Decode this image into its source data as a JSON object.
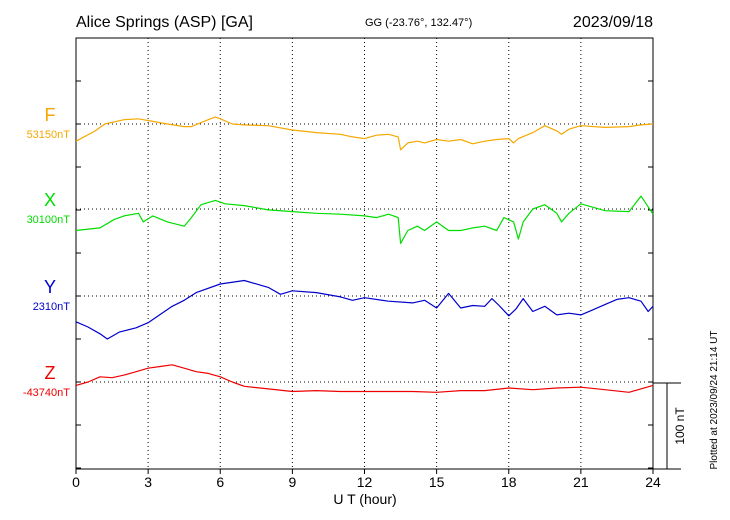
{
  "header": {
    "station": "Alice Springs (ASP)  [GA]",
    "coords": "GG (-23.76°, 132.47°)",
    "date": "2023/09/18"
  },
  "footer": {
    "plotted": "Plotted at 2023/09/24 21:14 UT"
  },
  "chart_data": {
    "type": "line",
    "xlabel": "U T (hour)",
    "xlim": [
      0,
      24
    ],
    "xticks": [
      "0",
      "3",
      "6",
      "9",
      "12",
      "15",
      "18",
      "21",
      "24"
    ],
    "grid": true,
    "scale_bar": "100 nT",
    "series": [
      {
        "name": "F",
        "baseline_label": "53150nT",
        "color": "#f5a800",
        "x": [
          0,
          0.8,
          1.2,
          2.0,
          2.6,
          2.8,
          3.2,
          3.8,
          4.5,
          4.8,
          5.5,
          5.8,
          6.0,
          6.5,
          7.0,
          8.0,
          9.0,
          10.0,
          11.0,
          11.5,
          12.0,
          12.5,
          13.0,
          13.4,
          13.5,
          13.8,
          14.2,
          14.5,
          15.0,
          15.5,
          16.0,
          16.5,
          17.0,
          17.5,
          18.0,
          18.2,
          18.4,
          19.0,
          19.5,
          20.0,
          20.2,
          20.5,
          21.0,
          22.0,
          23.0,
          23.5,
          24.0
        ],
        "values": [
          -20,
          -8,
          0,
          5,
          6,
          5,
          3,
          0,
          -3,
          -3,
          5,
          8,
          6,
          0,
          -1,
          -2,
          -7,
          -10,
          -12,
          -15,
          -17,
          -13,
          -12,
          -15,
          -30,
          -22,
          -20,
          -22,
          -18,
          -20,
          -18,
          -23,
          -20,
          -18,
          -17,
          -22,
          -17,
          -10,
          -2,
          -8,
          -12,
          -6,
          -2,
          -4,
          -3,
          -1,
          0
        ]
      },
      {
        "name": "X",
        "baseline_label": "30100nT",
        "color": "#00dd00",
        "x": [
          0,
          1.0,
          1.6,
          2.0,
          2.6,
          2.8,
          3.2,
          3.8,
          4.5,
          4.8,
          5.2,
          5.8,
          6.2,
          7.0,
          8.0,
          9.0,
          10.0,
          11.0,
          12.0,
          12.5,
          13.0,
          13.4,
          13.5,
          13.8,
          14.2,
          14.5,
          15.0,
          15.5,
          16.0,
          16.5,
          17.0,
          17.5,
          17.8,
          18.2,
          18.4,
          18.6,
          19.0,
          19.5,
          20.0,
          20.2,
          20.5,
          21.0,
          22.0,
          23.0,
          23.5,
          24.0
        ],
        "values": [
          -25,
          -22,
          -12,
          -8,
          -5,
          -15,
          -8,
          -15,
          -20,
          -10,
          5,
          10,
          6,
          4,
          -1,
          -3,
          -5,
          -6,
          -8,
          -10,
          -6,
          -10,
          -40,
          -25,
          -20,
          -25,
          -15,
          -25,
          -25,
          -22,
          -20,
          -25,
          -10,
          -15,
          -35,
          -15,
          0,
          5,
          -5,
          -15,
          -5,
          6,
          -2,
          -3,
          15,
          -6
        ]
      },
      {
        "name": "Y",
        "baseline_label": "2310nT",
        "color": "#0000cc",
        "x": [
          0,
          0.5,
          1.0,
          1.3,
          1.8,
          2.5,
          3.0,
          4.0,
          4.5,
          5.0,
          6.0,
          7.0,
          8.0,
          8.5,
          9.0,
          10.0,
          11.0,
          11.5,
          12.0,
          13.0,
          14.0,
          14.5,
          15.0,
          15.5,
          16.0,
          16.5,
          17.0,
          17.3,
          17.6,
          18.0,
          18.3,
          18.6,
          19.0,
          19.5,
          20.0,
          20.5,
          21.0,
          21.5,
          22.0,
          22.5,
          23.0,
          23.5,
          23.8,
          24.0
        ],
        "values": [
          -30,
          -36,
          -44,
          -50,
          -42,
          -37,
          -31,
          -12,
          -5,
          4,
          14,
          18,
          10,
          2,
          6,
          4,
          -1,
          -5,
          -2,
          -6,
          -8,
          -5,
          -14,
          3,
          -14,
          -11,
          -12,
          -3,
          -11,
          -23,
          -15,
          -3,
          -18,
          -12,
          -22,
          -20,
          -22,
          -16,
          -10,
          -4,
          -2,
          -6,
          -18,
          -12
        ]
      },
      {
        "name": "Z",
        "baseline_label": "-43740nT",
        "color": "#ee0000",
        "x": [
          0,
          0.5,
          1.0,
          1.5,
          2.0,
          2.5,
          3.0,
          3.5,
          4.0,
          4.5,
          5.0,
          5.5,
          6.0,
          6.5,
          7.0,
          8.0,
          9.0,
          10.0,
          11.0,
          12.0,
          13.0,
          14.0,
          15.0,
          16.0,
          17.0,
          18.0,
          19.0,
          20.0,
          21.0,
          22.0,
          23.0,
          24.0
        ],
        "values": [
          -4,
          0,
          6,
          5,
          8,
          12,
          16,
          18,
          20,
          16,
          12,
          10,
          6,
          0,
          -5,
          -8,
          -11,
          -10,
          -11,
          -11,
          -11,
          -11,
          -12,
          -10,
          -10,
          -7,
          -9,
          -7,
          -6,
          -9,
          -12,
          -4
        ]
      }
    ]
  }
}
